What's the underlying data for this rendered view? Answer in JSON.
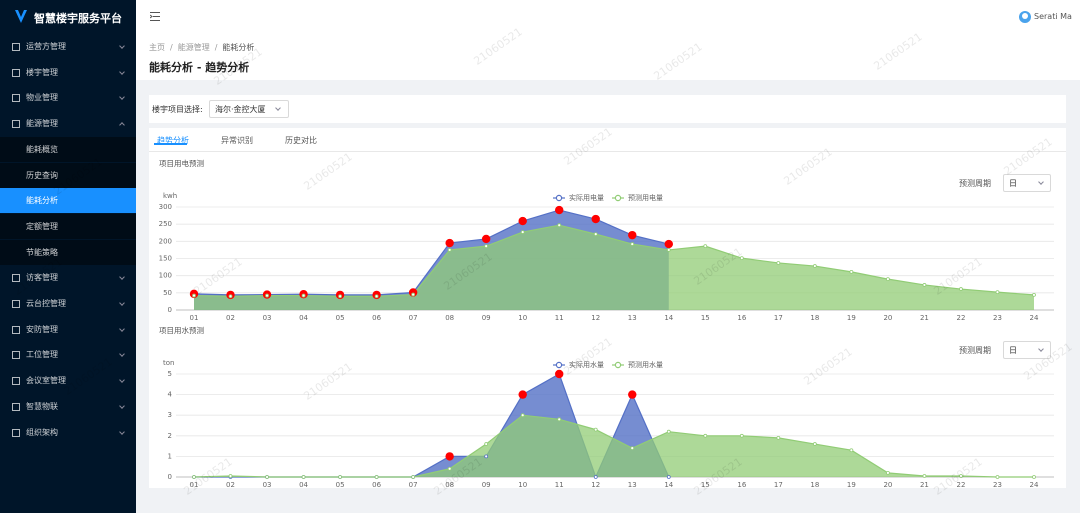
{
  "app": {
    "title": "智慧楼宇服务平台",
    "user": "Serati Ma",
    "watermark": "21060521"
  },
  "menu": [
    {
      "label": "运营方管理"
    },
    {
      "label": "楼宇管理"
    },
    {
      "label": "物业管理"
    },
    {
      "label": "能源管理",
      "expanded": true,
      "children": [
        {
          "label": "能耗概览"
        },
        {
          "label": "历史查询"
        },
        {
          "label": "能耗分析",
          "active": true
        },
        {
          "label": "定额管理"
        },
        {
          "label": "节能策略"
        }
      ]
    },
    {
      "label": "访客管理"
    },
    {
      "label": "云台控管理"
    },
    {
      "label": "安防管理"
    },
    {
      "label": "工位管理"
    },
    {
      "label": "会议室管理"
    },
    {
      "label": "智慧物联"
    },
    {
      "label": "组织架构"
    }
  ],
  "breadcrumb": [
    "主页",
    "能源管理",
    "能耗分析"
  ],
  "page_title": "能耗分析 - 趋势分析",
  "filter": {
    "label": "楼宇项目选择:",
    "value": "海尔·金控大厦"
  },
  "tabs": [
    {
      "label": "趋势分析",
      "active": true
    },
    {
      "label": "异常识别"
    },
    {
      "label": "历史对比"
    }
  ],
  "chart_data": [
    {
      "type": "line",
      "title": "项目用电预测",
      "y_unit": "kwh",
      "period_label": "预测周期",
      "period_value": "日",
      "area": true,
      "grid": true,
      "legend": "top",
      "categories": [
        "01",
        "02",
        "03",
        "04",
        "05",
        "06",
        "07",
        "08",
        "09",
        "10",
        "11",
        "12",
        "13",
        "14",
        "15",
        "16",
        "17",
        "18",
        "19",
        "20",
        "21",
        "22",
        "23",
        "24"
      ],
      "ylim": [
        0,
        300
      ],
      "yticks": [
        0,
        50,
        100,
        150,
        200,
        250,
        300
      ],
      "series": [
        {
          "name": "实际用电量",
          "color": "#5470c6",
          "highlight_color": "#ff0000",
          "highlight": [
            true,
            true,
            true,
            true,
            true,
            true,
            true,
            true,
            true,
            true,
            true,
            true,
            true,
            true
          ],
          "values": [
            47,
            44,
            45,
            46,
            44,
            44,
            51,
            195,
            207,
            259,
            291,
            265,
            218,
            192,
            null,
            null,
            null,
            null,
            null,
            null,
            null,
            null,
            null,
            null
          ]
        },
        {
          "name": "预测用电量",
          "color": "#91cc75",
          "values": [
            42,
            40,
            42,
            42,
            40,
            40,
            45,
            175,
            186,
            227,
            247,
            221,
            192,
            175,
            186,
            151,
            137,
            128,
            111,
            90,
            73,
            61,
            52,
            44
          ]
        }
      ]
    },
    {
      "type": "line",
      "title": "项目用水预测",
      "y_unit": "ton",
      "period_label": "预测周期",
      "period_value": "日",
      "area": true,
      "grid": true,
      "legend": "top",
      "categories": [
        "01",
        "02",
        "03",
        "04",
        "05",
        "06",
        "07",
        "08",
        "09",
        "10",
        "11",
        "12",
        "13",
        "14",
        "15",
        "16",
        "17",
        "18",
        "19",
        "20",
        "21",
        "22",
        "23",
        "24"
      ],
      "ylim": [
        0,
        5
      ],
      "yticks": [
        0,
        1,
        2,
        3,
        4,
        5
      ],
      "series": [
        {
          "name": "实际用水量",
          "color": "#5470c6",
          "highlight_color": "#ff0000",
          "highlight": [
            false,
            false,
            false,
            false,
            false,
            false,
            false,
            true,
            false,
            true,
            true,
            false,
            true,
            false
          ],
          "values": [
            0,
            0,
            0,
            0,
            0,
            0,
            0,
            1,
            1,
            4,
            5,
            0,
            4,
            0,
            null,
            null,
            null,
            null,
            null,
            null,
            null,
            null,
            null,
            null
          ]
        },
        {
          "name": "预测用水量",
          "color": "#91cc75",
          "values": [
            0,
            0.05,
            0,
            0,
            0,
            0,
            0,
            0.4,
            1.6,
            3,
            2.8,
            2.3,
            1.4,
            2.2,
            2,
            2,
            1.9,
            1.6,
            1.3,
            0.2,
            0.05,
            0.05,
            0,
            0
          ]
        }
      ]
    }
  ]
}
